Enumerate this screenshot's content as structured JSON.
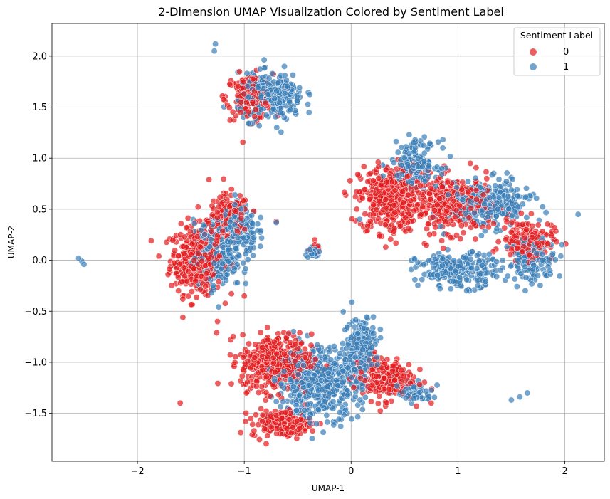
{
  "chart_data": {
    "type": "scatter",
    "title": "2-Dimension UMAP Visualization Colored by Sentiment Label",
    "xlabel": "UMAP-1",
    "ylabel": "UMAP-2",
    "xlim": [
      -2.8,
      2.37
    ],
    "ylim": [
      -1.97,
      2.32
    ],
    "xticks": [
      -2,
      -1,
      0,
      1,
      2
    ],
    "yticks": [
      -1.5,
      -1.0,
      -0.5,
      0.0,
      0.5,
      1.0,
      1.5,
      2.0
    ],
    "xtick_labels": [
      "−2",
      "−1",
      "0",
      "1",
      "2"
    ],
    "ytick_labels": [
      "−1.5",
      "−1.0",
      "−0.5",
      "0.0",
      "0.5",
      "1.0",
      "1.5",
      "2.0"
    ],
    "grid": true,
    "legend": {
      "title": "Sentiment Label",
      "placement": "top-right",
      "entries": [
        {
          "label": "0",
          "color": "#e41a1c"
        },
        {
          "label": "1",
          "color": "#377eb8"
        }
      ]
    },
    "series": [
      {
        "name": "0",
        "color": "#e41a1c",
        "clusters": [
          {
            "cx": -1.45,
            "cy": 0.0,
            "rx": 0.22,
            "ry": 0.3,
            "n": 320
          },
          {
            "cx": -1.15,
            "cy": 0.4,
            "rx": 0.18,
            "ry": 0.22,
            "n": 160
          },
          {
            "cx": -0.95,
            "cy": 1.6,
            "rx": 0.2,
            "ry": 0.2,
            "n": 160
          },
          {
            "cx": 0.35,
            "cy": 0.6,
            "rx": 0.25,
            "ry": 0.3,
            "n": 360
          },
          {
            "cx": 0.95,
            "cy": 0.55,
            "rx": 0.35,
            "ry": 0.25,
            "n": 320
          },
          {
            "cx": 1.65,
            "cy": 0.2,
            "rx": 0.22,
            "ry": 0.18,
            "n": 150
          },
          {
            "cx": -0.7,
            "cy": -1.0,
            "rx": 0.3,
            "ry": 0.25,
            "n": 420
          },
          {
            "cx": -0.65,
            "cy": -1.6,
            "rx": 0.25,
            "ry": 0.12,
            "n": 180
          },
          {
            "cx": 0.3,
            "cy": -1.15,
            "rx": 0.25,
            "ry": 0.2,
            "n": 200
          },
          {
            "cx": -0.35,
            "cy": 0.1,
            "rx": 0.05,
            "ry": 0.05,
            "n": 20
          }
        ],
        "points": [
          [
            -1.6,
            -1.4
          ],
          [
            -1.33,
            0.79
          ],
          [
            -0.7,
            0.38
          ],
          [
            -1.0,
            -0.35
          ],
          [
            -1.25,
            -0.6
          ],
          [
            0.75,
            -1.4
          ]
        ]
      },
      {
        "name": "1",
        "color": "#377eb8",
        "clusters": [
          {
            "cx": -1.25,
            "cy": 0.05,
            "rx": 0.2,
            "ry": 0.3,
            "n": 220
          },
          {
            "cx": -1.05,
            "cy": 0.3,
            "rx": 0.15,
            "ry": 0.25,
            "n": 160
          },
          {
            "cx": -0.75,
            "cy": 1.6,
            "rx": 0.28,
            "ry": 0.2,
            "n": 300
          },
          {
            "cx": 0.6,
            "cy": 0.95,
            "rx": 0.2,
            "ry": 0.2,
            "n": 160
          },
          {
            "cx": 1.3,
            "cy": 0.55,
            "rx": 0.35,
            "ry": 0.2,
            "n": 300
          },
          {
            "cx": 1.0,
            "cy": -0.1,
            "rx": 0.35,
            "ry": 0.15,
            "n": 220
          },
          {
            "cx": 1.7,
            "cy": 0.0,
            "rx": 0.2,
            "ry": 0.2,
            "n": 120
          },
          {
            "cx": -0.3,
            "cy": -1.2,
            "rx": 0.35,
            "ry": 0.3,
            "n": 520
          },
          {
            "cx": 0.1,
            "cy": -0.8,
            "rx": 0.15,
            "ry": 0.25,
            "n": 150
          },
          {
            "cx": -0.35,
            "cy": 0.08,
            "rx": 0.06,
            "ry": 0.06,
            "n": 30
          },
          {
            "cx": 0.6,
            "cy": -1.3,
            "rx": 0.15,
            "ry": 0.08,
            "n": 60
          }
        ],
        "points": [
          [
            -2.55,
            0.02
          ],
          [
            -2.52,
            -0.01
          ],
          [
            -2.5,
            -0.04
          ],
          [
            -1.27,
            2.12
          ],
          [
            -1.28,
            2.05
          ],
          [
            1.5,
            -1.37
          ],
          [
            1.58,
            -1.34
          ],
          [
            1.65,
            -1.3
          ],
          [
            0.08,
            0.4
          ],
          [
            -0.7,
            0.37
          ]
        ]
      }
    ]
  }
}
